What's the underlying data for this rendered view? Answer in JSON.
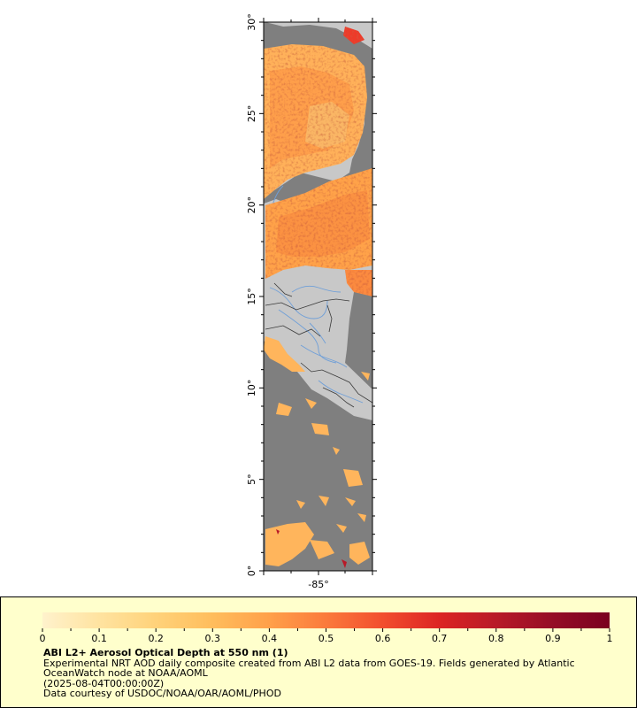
{
  "map": {
    "y_tick_labels": [
      "0°",
      "5°",
      "10°",
      "15°",
      "20°",
      "25°",
      "30°"
    ],
    "x_tick_labels": [
      "-85°"
    ],
    "colors": {
      "ocean": "#7f7f7f",
      "land": "#c8c8c8",
      "rivers": "#6f9fd8",
      "borders": "#3a3a3a"
    }
  },
  "legend": {
    "title": "ABI L2+ Aerosol Optical Depth at 550 nm (1)",
    "lines": [
      "Experimental NRT AOD daily composite created from ABI L2 data from GOES-19. Fields generated by Atlantic",
      "OceanWatch node at NOAA/AOML",
      "(2025-08-04T00:00:00Z)",
      "Data courtesy of USDOC/NOAA/OAR/AOML/PHOD"
    ],
    "colorbar_tick_labels": [
      "0",
      "0.1",
      "0.2",
      "0.3",
      "0.4",
      "0.5",
      "0.6",
      "0.7",
      "0.8",
      "0.9",
      "1"
    ],
    "colorbar_range": [
      0,
      1
    ],
    "colorbar_stops": [
      "#fff2cc",
      "#ffe3a0",
      "#ffd27a",
      "#ffbd5c",
      "#ffa04a",
      "#fb7a3c",
      "#f24e2e",
      "#dc2424",
      "#b81a28",
      "#950d26",
      "#7a0020"
    ]
  }
}
